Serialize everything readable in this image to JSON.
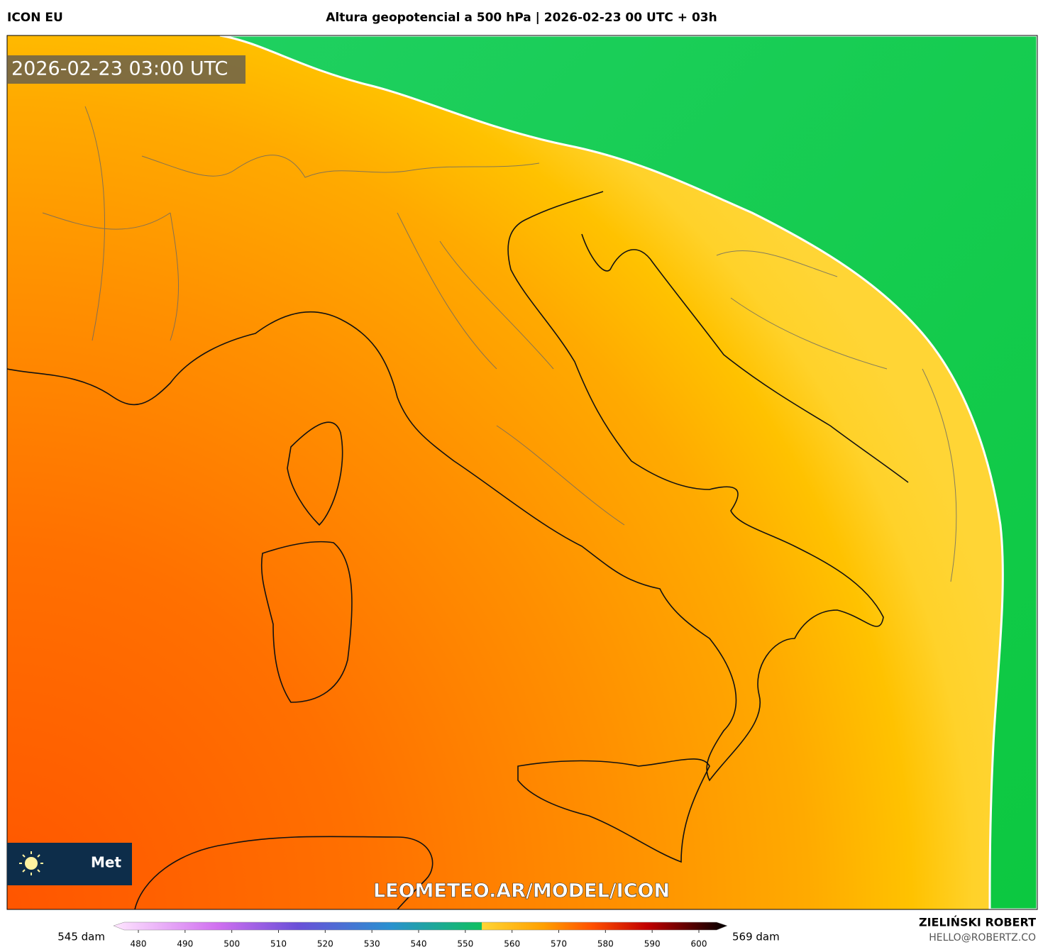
{
  "header": {
    "model": "ICON EU",
    "title": "Altura geopotencial a 500 hPa | 2026-02-23 00 UTC + 03h"
  },
  "map": {
    "timestamp": "2026-02-23 03:00 UTC",
    "watermark": "LEOMETEO.AR/MODEL/ICON",
    "logo_text": "Met"
  },
  "colorbar": {
    "min_label": "545 dam",
    "max_label": "569 dam",
    "ticks": [
      480,
      490,
      500,
      510,
      520,
      530,
      540,
      550,
      560,
      570,
      580,
      590,
      600
    ]
  },
  "footer": {
    "author": "ZIELIŃSKI ROBERT",
    "email": "HELLO@ROBERTZ.CO"
  }
}
